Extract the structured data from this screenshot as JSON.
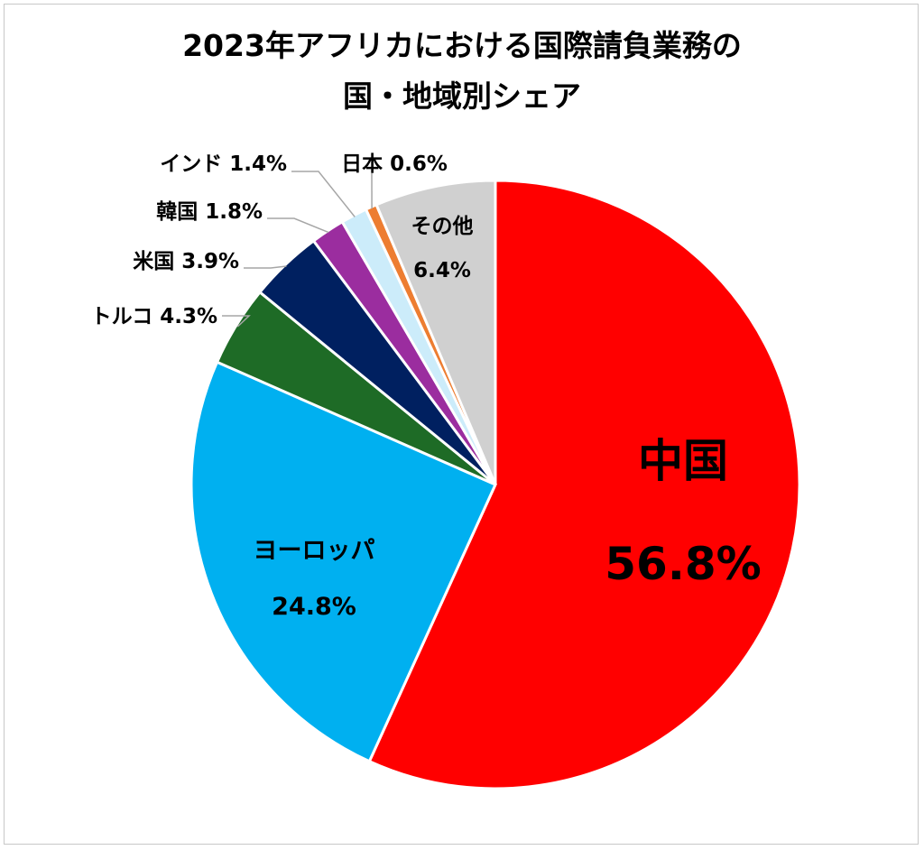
{
  "chart_data": {
    "type": "pie",
    "title": "2023年アフリカにおける国際請負業務の国・地域別シェア",
    "title_lines": [
      "2023年アフリカにおける国際請負業務の",
      "国・地域別シェア"
    ],
    "categories": [
      "中国",
      "ヨーロッパ",
      "トルコ",
      "米国",
      "韓国",
      "インド",
      "日本",
      "その他"
    ],
    "values": [
      56.8,
      24.8,
      4.3,
      3.9,
      1.8,
      1.4,
      0.6,
      6.4
    ],
    "unit": "%",
    "legend": "none",
    "slices": [
      {
        "name": "中国",
        "value": 56.8,
        "label": "56.8%",
        "color": "#ff0000"
      },
      {
        "name": "ヨーロッパ",
        "value": 24.8,
        "label": "24.8%",
        "color": "#00b0f0"
      },
      {
        "name": "トルコ",
        "value": 4.3,
        "label": "トルコ 4.3%",
        "color": "#1e6b26"
      },
      {
        "name": "米国",
        "value": 3.9,
        "label": "米国 3.9%",
        "color": "#002060"
      },
      {
        "name": "韓国",
        "value": 1.8,
        "label": "韓国 1.8%",
        "color": "#9b2d9f"
      },
      {
        "name": "インド",
        "value": 1.4,
        "label": "インド 1.4%",
        "color": "#ccecfa"
      },
      {
        "name": "日本",
        "value": 0.6,
        "label": "日本 0.6%",
        "color": "#ed7d31"
      },
      {
        "name": "その他",
        "value": 6.4,
        "label": "6.4%",
        "color": "#d0d0d0"
      }
    ]
  }
}
